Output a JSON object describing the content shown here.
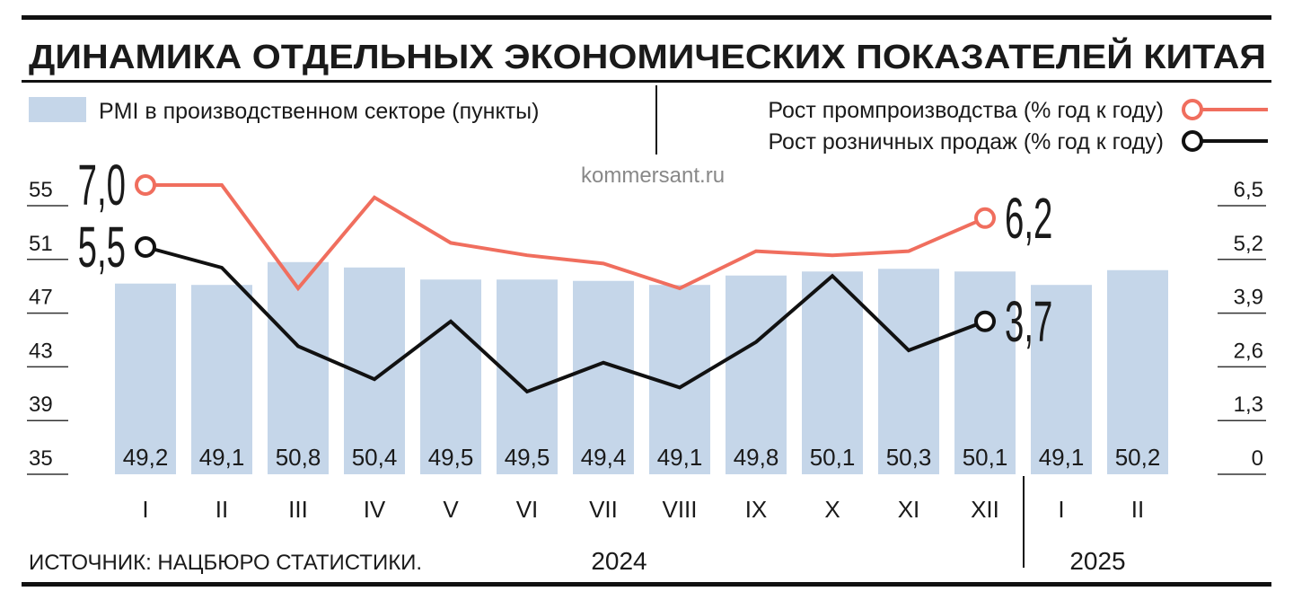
{
  "chart_data": {
    "type": "bar-line",
    "title": "ДИНАМИКА ОТДЕЛЬНЫХ ЭКОНОМИЧЕСКИХ ПОКАЗАТЕЛЕЙ КИТАЯ",
    "watermark": "kommersant.ru",
    "source": "ИСТОЧНИК: НАЦБЮРО СТАТИСТИКИ.",
    "categories": [
      "I",
      "II",
      "III",
      "IV",
      "V",
      "VI",
      "VII",
      "VIII",
      "IX",
      "X",
      "XI",
      "XII",
      "I",
      "II"
    ],
    "years": [
      {
        "label": "2024",
        "from": 0,
        "to": 11
      },
      {
        "label": "2025",
        "from": 12,
        "to": 13
      }
    ],
    "ylim": [
      35,
      55
    ],
    "yticks": [
      35,
      39,
      43,
      47,
      51,
      55
    ],
    "y2lim": [
      0,
      6.5
    ],
    "y2ticks": [
      0,
      {
        "value": 1.3,
        "label": "1,3"
      },
      {
        "value": 2.6,
        "label": "2,6"
      },
      {
        "value": 3.9,
        "label": "3,9"
      },
      {
        "value": 5.2,
        "label": "5,2"
      },
      {
        "value": 6.5,
        "label": "6,5"
      }
    ],
    "series": [
      {
        "name": "PMI в производственном секторе (пункты)",
        "type": "bar",
        "color": "#c5d6e9",
        "values": [
          49.2,
          49.1,
          50.8,
          50.4,
          49.5,
          49.5,
          49.4,
          49.1,
          49.8,
          50.1,
          50.3,
          50.1,
          49.1,
          50.2
        ],
        "value_labels": [
          "49,2",
          "49,1",
          "50,8",
          "50,4",
          "49,5",
          "49,5",
          "49,4",
          "49,1",
          "49,8",
          "50,1",
          "50,3",
          "50,1",
          "49,1",
          "50,2"
        ]
      },
      {
        "name": "Рост промпроизводства (% год к году)",
        "type": "line",
        "axis": "y2",
        "color": "#f06e5e",
        "values": [
          7.0,
          7.0,
          4.5,
          6.7,
          5.6,
          5.3,
          5.1,
          4.5,
          5.4,
          5.3,
          5.4,
          6.2,
          null,
          null
        ],
        "value_labels": [
          "7,0",
          null,
          null,
          null,
          null,
          null,
          null,
          null,
          null,
          null,
          null,
          "6,2",
          null,
          null
        ]
      },
      {
        "name": "Рост розничных продаж (% год к году)",
        "type": "line",
        "axis": "y2",
        "color": "#111111",
        "values": [
          5.5,
          5.0,
          3.1,
          2.3,
          3.7,
          2.0,
          2.7,
          2.1,
          3.2,
          4.8,
          3.0,
          3.7,
          null,
          null
        ],
        "value_labels": [
          "5,5",
          null,
          null,
          null,
          null,
          null,
          null,
          null,
          null,
          null,
          null,
          "3,7",
          null,
          null
        ]
      }
    ]
  }
}
